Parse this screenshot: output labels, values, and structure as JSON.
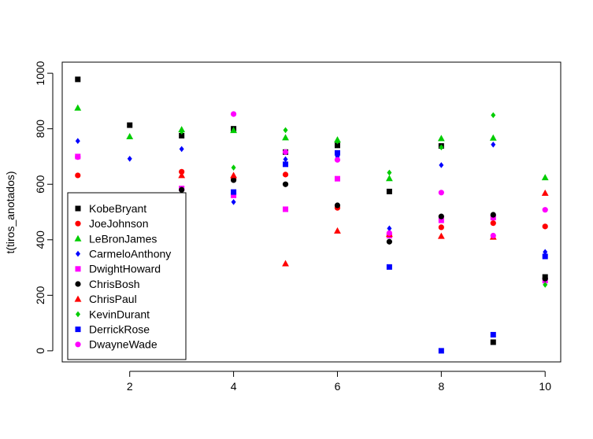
{
  "chart_data": {
    "type": "scatter",
    "title": "",
    "xlabel": "",
    "ylabel": "t(tiros_anotados)",
    "xlim": [
      0.7,
      10.3
    ],
    "ylim": [
      -40,
      1040
    ],
    "x_ticks": [
      2,
      4,
      6,
      8,
      10
    ],
    "y_ticks": [
      0,
      200,
      400,
      600,
      800,
      1000
    ],
    "x": [
      1,
      2,
      3,
      4,
      5,
      6,
      7,
      8,
      9,
      10
    ],
    "legend_position": "bottom-left",
    "grid": false,
    "series": [
      {
        "name": "KobeBryant",
        "color": "#000000",
        "shape": "square",
        "values": [
          978,
          813,
          775,
          800,
          716,
          740,
          574,
          738,
          31,
          266
        ]
      },
      {
        "name": "JoeJohnson",
        "color": "#ff0000",
        "shape": "circle",
        "values": [
          632,
          null,
          645,
          618,
          635,
          515,
          418,
          445,
          460,
          448
        ]
      },
      {
        "name": "LeBronJames",
        "color": "#00cd00",
        "shape": "triangle",
        "values": [
          875,
          772,
          797,
          794,
          768,
          760,
          621,
          765,
          767,
          624
        ]
      },
      {
        "name": "CarmeloAnthony",
        "color": "#0000ff",
        "shape": "diamond",
        "values": [
          756,
          692,
          727,
          536,
          690,
          700,
          441,
          669,
          743,
          356
        ]
      },
      {
        "name": "DwightHoward",
        "color": "#ff00ff",
        "shape": "square",
        "values": [
          700,
          null,
          585,
          560,
          510,
          620,
          415,
          470,
          480,
          253
        ]
      },
      {
        "name": "ChrisBosh",
        "color": "#000000",
        "shape": "circle",
        "values": [
          550,
          null,
          580,
          615,
          600,
          524,
          393,
          484,
          490,
          260
        ]
      },
      {
        "name": "ChrisPaul",
        "color": "#ff0000",
        "shape": "triangle",
        "values": [
          530,
          null,
          632,
          632,
          314,
          432,
          420,
          413,
          410,
          568
        ]
      },
      {
        "name": "KevinDurant",
        "color": "#00cd00",
        "shape": "diamond",
        "values": [
          null,
          null,
          790,
          660,
          795,
          755,
          642,
          733,
          849,
          238
        ]
      },
      {
        "name": "DerrickRose",
        "color": "#0000ff",
        "shape": "square",
        "values": [
          null,
          null,
          null,
          572,
          672,
          713,
          302,
          0,
          58,
          340
        ]
      },
      {
        "name": "DwayneWade",
        "color": "#ff00ff",
        "shape": "circle",
        "values": [
          698,
          null,
          null,
          853,
          716,
          688,
          424,
          570,
          415,
          508
        ]
      }
    ]
  }
}
